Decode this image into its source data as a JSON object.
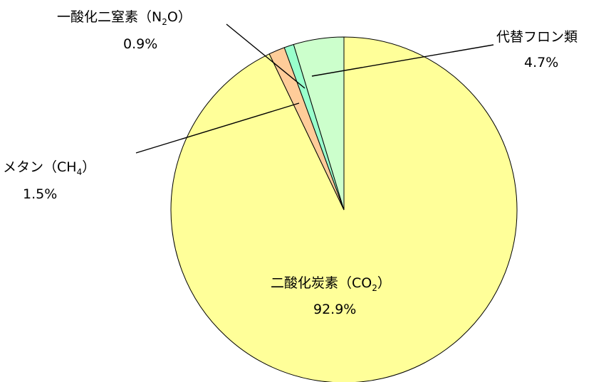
{
  "chart_data": {
    "type": "pie",
    "title": "",
    "start": "top",
    "direction": "clockwise",
    "slices": [
      {
        "label": "二酸化炭素(CO2)",
        "value": 92.9,
        "value_text": "92.9%",
        "color": "#FFFF99"
      },
      {
        "label": "メタン(CH4)",
        "value": 1.5,
        "value_text": "1.5%",
        "color": "#FFCC99"
      },
      {
        "label": "一酸化二窒素(N2O)",
        "value": 0.9,
        "value_text": "0.9%",
        "color": "#99FFCC"
      },
      {
        "label": "代替フロン類",
        "value": 4.7,
        "value_text": "4.7%",
        "color": "#CCFFCC"
      }
    ]
  },
  "labels": {
    "co2": {
      "name_main": "二酸化炭素（CO",
      "sub": "2",
      "name_end": "）",
      "value": "92.9%"
    },
    "ch4": {
      "name_main": "メタン（CH",
      "sub": "4",
      "name_end": "）",
      "value": "1.5%"
    },
    "n2o": {
      "name_main": "一酸化二窒素（N",
      "sub": "2",
      "name_end": "O）",
      "value": "0.9%"
    },
    "hfc": {
      "name": "代替フロン類",
      "value": "4.7%"
    }
  }
}
